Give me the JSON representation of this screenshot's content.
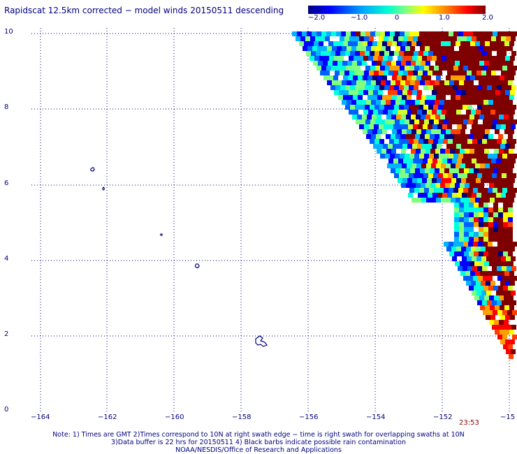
{
  "title": "Rapidscat 12.5km corrected − model winds 20150511 descending",
  "colorbar": {
    "labels": [
      "−2.0",
      "−1.0",
      "0",
      "1.0",
      "2.0"
    ],
    "colors": [
      "#00007f",
      "#0000ff",
      "#00c8ff",
      "#66ff99",
      "#ffff00",
      "#ff7f00",
      "#ff0000",
      "#7f0000"
    ]
  },
  "axes": {
    "y_labels": [
      "10",
      "8",
      "6",
      "4",
      "2",
      "0"
    ],
    "x_labels": [
      "−164",
      "−162",
      "−160",
      "−158",
      "−156",
      "−154",
      "−152",
      "−15"
    ]
  },
  "swath_time": "23:53",
  "notes": [
    "Note: 1) Times are GMT 2)Times correspond to 10N at right swath edge − time is right swath for overlapping swaths at 10N",
    "3)Data buffer is 22 hrs for 20150511 4) Black barbs indicate possible rain contamination",
    "NOAA/NESDIS/Office of Research and Applications"
  ]
}
